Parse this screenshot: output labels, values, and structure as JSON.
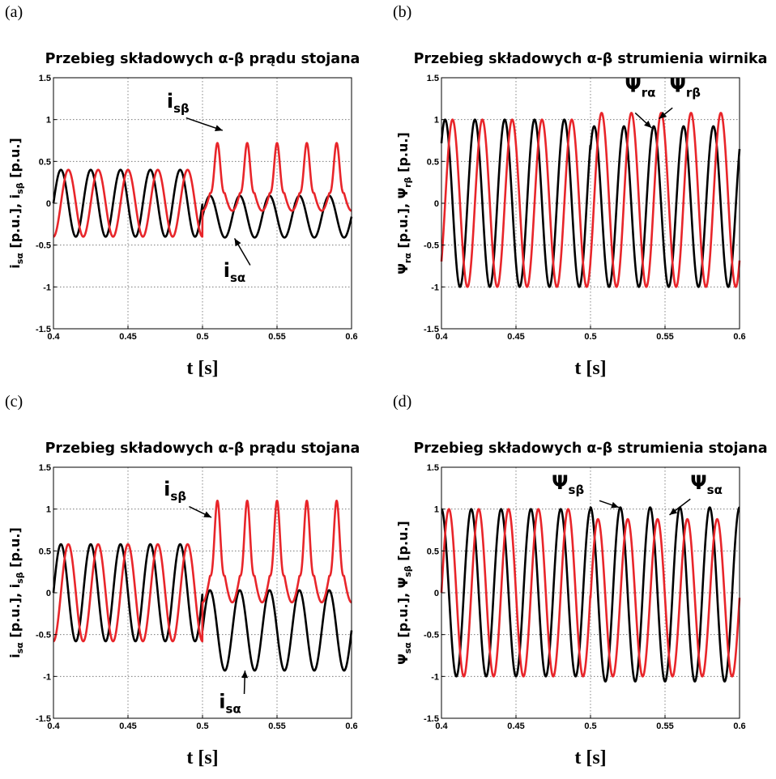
{
  "chart_data": [
    {
      "panel": "(a)",
      "type": "line",
      "title": "Przebieg składowych α-β prądu stojana",
      "xlabel": "t [s]",
      "ylabel": "i_sα [p.u.], i_sβ [p.u.]",
      "ylabel_parts": [
        "i",
        "sα",
        " [p.u.], ",
        "i",
        "sβ",
        " [p.u.]"
      ],
      "xlim": [
        0.4,
        0.6
      ],
      "ylim": [
        -1.5,
        1.5
      ],
      "xticks": [
        "0.4",
        "0.45",
        "0.5",
        "0.55",
        "0.6"
      ],
      "yticks": [
        "-1.5",
        "-1",
        "-0.5",
        "0",
        "0.5",
        "1",
        "1.5"
      ],
      "grid": true,
      "series": [
        {
          "name": "i_sα",
          "color": "#000000",
          "model": "sine",
          "amp_before": 0.4,
          "freq_before": 50,
          "phase_before": 0.0,
          "offset_before": 0.0,
          "amp_after": 0.25,
          "freq_after": 50,
          "phase_after": 0.0,
          "offset_after": -0.16,
          "t_switch": 0.5
        },
        {
          "name": "i_sβ",
          "color": "#e8252a",
          "model": "peaky",
          "amp_before": 0.4,
          "freq_before": 50,
          "phase_before": -1.5708,
          "offset_before": 0.0,
          "amp_after": 0.6,
          "freq_after": 50,
          "phase_after": -1.5708,
          "offset_after": 0.12,
          "t_switch": 0.5
        }
      ],
      "annotations": [
        {
          "base": "i",
          "sub": "sβ",
          "text": "i_sβ",
          "tx": 0.476,
          "ty": 1.14,
          "ax": 0.489,
          "ay": 1.02,
          "px": 0.5135,
          "py": 0.87
        },
        {
          "base": "i",
          "sub": "sα",
          "text": "i_sα",
          "tx": 0.514,
          "ty": -0.88,
          "ax": 0.532,
          "ay": -0.74,
          "px": 0.5215,
          "py": -0.42
        }
      ]
    },
    {
      "panel": "(b)",
      "type": "line",
      "title": "Przebieg składowych α-β strumienia wirnika",
      "xlabel": "t [s]",
      "ylabel": "Ψ_rα [p.u.], Ψ_rβ [p.u.]",
      "ylabel_parts": [
        "Ψ",
        "rα",
        " [p.u.], ",
        "Ψ",
        "rβ",
        " [p.u.]"
      ],
      "xlim": [
        0.4,
        0.6
      ],
      "ylim": [
        -1.5,
        1.5
      ],
      "xticks": [
        "0.4",
        "0.45",
        "0.5",
        "0.55",
        "0.6"
      ],
      "yticks": [
        "-1.5",
        "-1",
        "-0.5",
        "0",
        "0.5",
        "1",
        "1.5"
      ],
      "grid": true,
      "series": [
        {
          "name": "Ψ_rα",
          "color": "#000000",
          "model": "sine",
          "amp_before": 1.0,
          "freq_before": 50,
          "phase_before": 0.8,
          "offset_before": 0.0,
          "amp_after": 0.96,
          "freq_after": 50,
          "phase_after": 0.8,
          "offset_after": -0.04,
          "t_switch": 0.5
        },
        {
          "name": "Ψ_rβ",
          "color": "#e8252a",
          "model": "sine",
          "amp_before": 1.0,
          "freq_before": 50,
          "phase_before": -0.77,
          "offset_before": 0.0,
          "amp_after": 1.04,
          "freq_after": 50,
          "phase_after": -0.77,
          "offset_after": 0.04,
          "t_switch": 0.5
        }
      ],
      "annotations": [
        {
          "base": "Ψ",
          "sub": "rα",
          "text": "Ψ_rα",
          "tx": 0.523,
          "ty": 1.33,
          "ax": 0.53,
          "ay": 1.08,
          "px": 0.541,
          "py": 0.9
        },
        {
          "base": "Ψ",
          "sub": "rβ",
          "text": "Ψ_rβ",
          "tx": 0.553,
          "ty": 1.33,
          "ax": 0.555,
          "ay": 1.14,
          "px": 0.546,
          "py": 1.01
        }
      ]
    },
    {
      "panel": "(c)",
      "type": "line",
      "title": "Przebieg składowych α-β prądu stojana",
      "xlabel": "t [s]",
      "ylabel": "i_sα [p.u.], i_sβ [p.u.]",
      "ylabel_parts": [
        "i",
        "sα",
        " [p.u.], ",
        "i",
        "sβ",
        " [p.u.]"
      ],
      "xlim": [
        0.4,
        0.6
      ],
      "ylim": [
        -1.5,
        1.5
      ],
      "xticks": [
        "0.4",
        "0.45",
        "0.5",
        "0.55",
        "0.6"
      ],
      "yticks": [
        "-1.5",
        "-1",
        "-0.5",
        "0",
        "0.5",
        "1",
        "1.5"
      ],
      "grid": true,
      "series": [
        {
          "name": "i_sα",
          "color": "#000000",
          "model": "sine",
          "amp_before": 0.58,
          "freq_before": 50,
          "phase_before": 0.0,
          "offset_before": 0.0,
          "amp_after": 0.48,
          "freq_after": 50,
          "phase_after": 0.0,
          "offset_after": -0.45,
          "t_switch": 0.5
        },
        {
          "name": "i_sβ",
          "color": "#e8252a",
          "model": "peaky",
          "amp_before": 0.58,
          "freq_before": 50,
          "phase_before": -1.5708,
          "offset_before": 0.0,
          "amp_after": 0.9,
          "freq_after": 50,
          "phase_after": -1.5708,
          "offset_after": 0.2,
          "t_switch": 0.5
        }
      ],
      "annotations": [
        {
          "base": "i",
          "sub": "sβ",
          "text": "i_sβ",
          "tx": 0.474,
          "ty": 1.16,
          "ax": 0.491,
          "ay": 1.03,
          "px": 0.506,
          "py": 0.9
        },
        {
          "base": "i",
          "sub": "sα",
          "text": "i_sα",
          "tx": 0.511,
          "ty": -1.38,
          "ax": 0.528,
          "ay": -1.21,
          "px": 0.5285,
          "py": -0.93
        }
      ]
    },
    {
      "panel": "(d)",
      "type": "line",
      "title": "Przebieg składowych α-β strumienia stojana",
      "xlabel": "t [s]",
      "ylabel": "Ψ_sα [p.u.], Ψ_sβ [p.u.]",
      "ylabel_parts": [
        "Ψ",
        "sα",
        " [p.u.], ",
        "Ψ",
        "sβ",
        " [p.u.]"
      ],
      "xlim": [
        0.4,
        0.6
      ],
      "ylim": [
        -1.5,
        1.5
      ],
      "xticks": [
        "0.4",
        "0.45",
        "0.5",
        "0.55",
        "0.6"
      ],
      "yticks": [
        "-1.5",
        "-1",
        "-0.5",
        "0",
        "0.5",
        "1",
        "1.5"
      ],
      "grid": true,
      "series": [
        {
          "name": "Ψ_sβ",
          "color": "#000000",
          "model": "sine",
          "amp_before": 1.0,
          "freq_before": 50,
          "phase_before": 1.571,
          "offset_before": 0.0,
          "amp_after": 1.04,
          "freq_after": 50,
          "phase_after": 1.571,
          "offset_after": -0.02,
          "t_switch": 0.5
        },
        {
          "name": "Ψ_sα",
          "color": "#e8252a",
          "model": "sine",
          "amp_before": 1.0,
          "freq_before": 50,
          "phase_before": 0.0,
          "offset_before": 0.0,
          "amp_after": 0.94,
          "freq_after": 50,
          "phase_after": 0.0,
          "offset_after": -0.06,
          "t_switch": 0.5
        }
      ],
      "annotations": [
        {
          "base": "Ψ",
          "sub": "sβ",
          "text": "Ψ_sβ",
          "tx": 0.474,
          "ty": 1.24,
          "ax": 0.506,
          "ay": 1.1,
          "px": 0.519,
          "py": 1.02
        },
        {
          "base": "Ψ",
          "sub": "sα",
          "text": "Ψ_sα",
          "tx": 0.567,
          "ty": 1.24,
          "ax": 0.567,
          "ay": 1.12,
          "px": 0.553,
          "py": 0.93
        }
      ]
    }
  ]
}
